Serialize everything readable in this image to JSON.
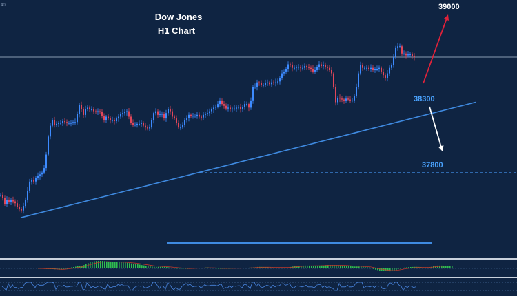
{
  "chart_data": {
    "type": "candlestick",
    "title": "Dow Jones",
    "subtitle": "H1 Chart",
    "corner_label": "40",
    "levels": [
      {
        "label": "39000",
        "value": 39000
      },
      {
        "label": "38300",
        "value": 38300
      },
      {
        "label": "37800",
        "value": 37800
      }
    ],
    "trendline": {
      "start": {
        "index": 10,
        "price": 37300
      },
      "end": {
        "index": 230,
        "price": 38580
      }
    },
    "arrows": [
      {
        "direction": "up",
        "from": 38230,
        "to": 38950,
        "color": "#e0223a"
      },
      {
        "direction": "down",
        "from": 38230,
        "to": 37900,
        "color": "#ffffff"
      }
    ],
    "closes": [
      37550,
      37520,
      37450,
      37500,
      37470,
      37500,
      37480,
      37460,
      37420,
      37400,
      37380,
      37430,
      37500,
      37600,
      37700,
      37720,
      37700,
      37740,
      37760,
      37780,
      37800,
      37850,
      38000,
      38200,
      38320,
      38380,
      38330,
      38340,
      38350,
      38350,
      38370,
      38360,
      38350,
      38350,
      38350,
      38360,
      38360,
      38450,
      38550,
      38500,
      38440,
      38500,
      38520,
      38500,
      38500,
      38480,
      38470,
      38480,
      38470,
      38430,
      38380,
      38420,
      38400,
      38380,
      38380,
      38370,
      38400,
      38420,
      38450,
      38460,
      38470,
      38480,
      38420,
      38350,
      38330,
      38330,
      38340,
      38340,
      38350,
      38320,
      38300,
      38290,
      38300,
      38380,
      38460,
      38480,
      38440,
      38450,
      38450,
      38400,
      38460,
      38500,
      38480,
      38420,
      38400,
      38350,
      38300,
      38300,
      38330,
      38380,
      38400,
      38440,
      38430,
      38430,
      38430,
      38440,
      38420,
      38410,
      38440,
      38450,
      38460,
      38480,
      38500,
      38520,
      38530,
      38560,
      38600,
      38560,
      38540,
      38510,
      38520,
      38500,
      38510,
      38510,
      38520,
      38530,
      38500,
      38530,
      38560,
      38560,
      38520,
      38600,
      38750,
      38750,
      38800,
      38790,
      38770,
      38770,
      38790,
      38800,
      38780,
      38800,
      38790,
      38800,
      38810,
      38850,
      38900,
      38920,
      38950,
      39000,
      38990,
      38960,
      38960,
      38970,
      38970,
      38960,
      38960,
      38980,
      38970,
      38960,
      38950,
      38920,
      38940,
      38970,
      39000,
      38980,
      38990,
      38970,
      38960,
      38940,
      38900,
      38750,
      38580,
      38630,
      38620,
      38610,
      38600,
      38620,
      38610,
      38600,
      38600,
      38650,
      38750,
      38900,
      38990,
      38960,
      38960,
      38960,
      38950,
      38960,
      38940,
      38950,
      38950,
      38960,
      38920,
      38880,
      38850,
      38900,
      38960,
      38990,
      39080,
      39180,
      39200,
      39200,
      39120,
      39120,
      39100,
      39110,
      39110,
      39090,
      39080
    ]
  }
}
